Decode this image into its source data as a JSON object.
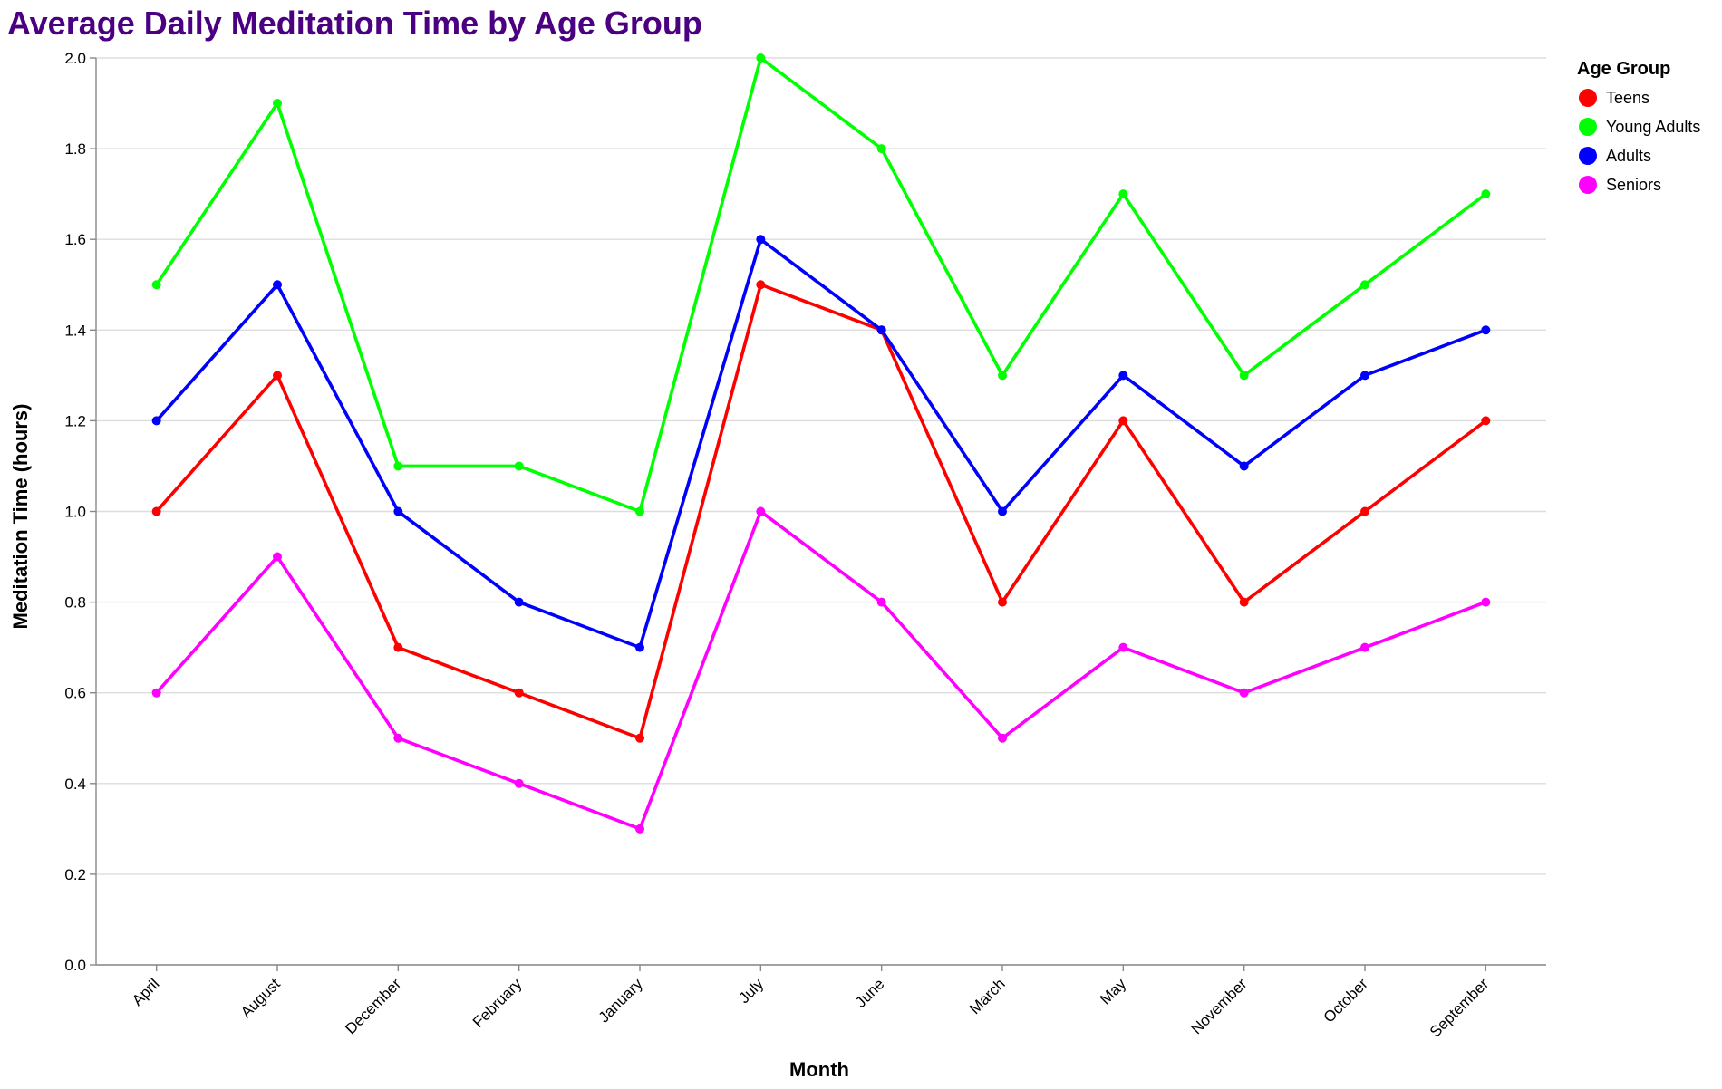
{
  "chart_data": {
    "type": "line",
    "title": "Average Daily Meditation Time by Age Group",
    "xlabel": "Month",
    "ylabel": "Meditation Time (hours)",
    "ylim": [
      0,
      2.0
    ],
    "yticks": [
      0.0,
      0.2,
      0.4,
      0.6,
      0.8,
      1.0,
      1.2,
      1.4,
      1.6,
      1.8,
      2.0
    ],
    "grid": true,
    "legend_title": "Age Group",
    "legend_position": "top-right",
    "categories": [
      "April",
      "August",
      "December",
      "February",
      "January",
      "July",
      "June",
      "March",
      "May",
      "November",
      "October",
      "September"
    ],
    "series": [
      {
        "name": "Teens",
        "color": "#ff0000",
        "values": [
          1.0,
          1.3,
          0.7,
          0.6,
          0.5,
          1.5,
          1.4,
          0.8,
          1.2,
          0.8,
          1.0,
          1.2
        ]
      },
      {
        "name": "Young Adults",
        "color": "#00ff00",
        "values": [
          1.5,
          1.9,
          1.1,
          1.1,
          1.0,
          2.0,
          1.8,
          1.3,
          1.7,
          1.3,
          1.5,
          1.7
        ]
      },
      {
        "name": "Adults",
        "color": "#0000ff",
        "values": [
          1.2,
          1.5,
          1.0,
          0.8,
          0.7,
          1.6,
          1.4,
          1.0,
          1.3,
          1.1,
          1.3,
          1.4
        ]
      },
      {
        "name": "Seniors",
        "color": "#ff00ff",
        "values": [
          0.6,
          0.9,
          0.5,
          0.4,
          0.3,
          1.0,
          0.8,
          0.5,
          0.7,
          0.6,
          0.7,
          0.8
        ]
      }
    ]
  }
}
